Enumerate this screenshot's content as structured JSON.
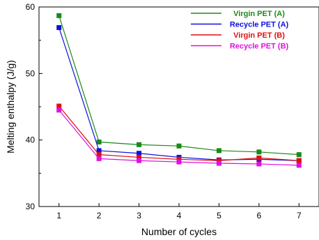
{
  "chart_data": {
    "type": "line",
    "xlabel": "Number of cycles",
    "ylabel": "Melting enthalpy (J/g)",
    "xlim": [
      0.5,
      7.5
    ],
    "ylim": [
      30,
      60
    ],
    "x_ticks": [
      1,
      2,
      3,
      4,
      5,
      6,
      7
    ],
    "y_ticks": [
      30,
      40,
      50,
      60
    ],
    "grid": false,
    "legend_position": "top-right",
    "x": [
      1,
      2,
      3,
      4,
      5,
      6,
      7
    ],
    "series": [
      {
        "name": "Virgin PET (A)",
        "color": "#1a8a1a",
        "values": [
          58.7,
          39.7,
          39.3,
          39.1,
          38.4,
          38.2,
          37.8
        ]
      },
      {
        "name": "Recycle PET (A)",
        "color": "#1010e0",
        "values": [
          56.9,
          38.4,
          38.0,
          37.4,
          37.0,
          37.1,
          36.9
        ]
      },
      {
        "name": "Virgin PET (B)",
        "color": "#e01010",
        "values": [
          45.1,
          37.8,
          37.4,
          37.1,
          36.9,
          37.3,
          36.9
        ]
      },
      {
        "name": "Recycle PET (B)",
        "color": "#e010e0",
        "values": [
          44.5,
          37.2,
          36.9,
          36.7,
          36.5,
          36.4,
          36.2
        ]
      }
    ]
  }
}
